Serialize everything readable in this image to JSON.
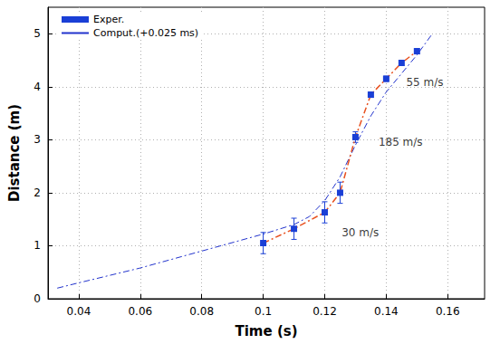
{
  "chart_data": {
    "type": "line",
    "x_label": "Time (s)",
    "y_label": "Distance (m)",
    "xlim": [
      0.03,
      0.172
    ],
    "xticks": [
      0.04,
      0.06,
      0.08,
      0.1,
      0.12,
      0.14,
      0.16
    ],
    "ylim": [
      0,
      5.5
    ],
    "yticks": [
      0,
      1,
      2,
      3,
      4,
      5
    ],
    "grid": true,
    "legend": "upper left",
    "series": [
      {
        "name": "Exper.",
        "color": "#1a3fd6",
        "marker": "square",
        "line_style": "dashdot",
        "x": [
          0.1,
          0.11,
          0.12,
          0.125,
          0.13,
          0.135,
          0.14,
          0.145,
          0.15
        ],
        "values": [
          1.05,
          1.32,
          1.63,
          2.0,
          3.05,
          3.85,
          4.15,
          4.45,
          4.67
        ],
        "errors": [
          0.2,
          0.2,
          0.2,
          0.2,
          0.1,
          0.05,
          0.05,
          0.05,
          0.05
        ]
      },
      {
        "name": "Comput.(+0.025 ms)",
        "color": "#2233cc",
        "marker": "none",
        "line_style": "dashdot",
        "x": [
          0.033,
          0.04,
          0.06,
          0.08,
          0.1,
          0.11,
          0.115,
          0.12,
          0.125,
          0.13,
          0.135,
          0.14,
          0.145,
          0.15,
          0.155
        ],
        "values": [
          0.2,
          0.3,
          0.58,
          0.9,
          1.22,
          1.4,
          1.55,
          1.85,
          2.3,
          2.9,
          3.45,
          3.9,
          4.25,
          4.6,
          5.0
        ]
      }
    ],
    "annotations": [
      {
        "text": "30 m/s",
        "x": 0.1255,
        "y": 1.25
      },
      {
        "text": "185 m/s",
        "x": 0.1375,
        "y": 2.95
      },
      {
        "text": "55 m/s",
        "x": 0.1465,
        "y": 4.08
      }
    ]
  }
}
